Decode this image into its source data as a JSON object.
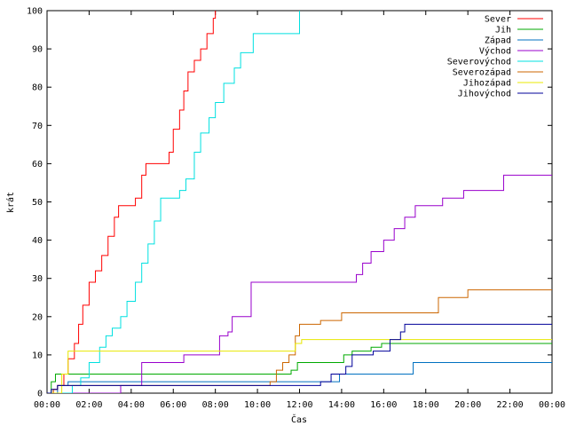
{
  "chart_data": {
    "type": "line",
    "xlabel": "Čas",
    "ylabel": "krát",
    "xlim": [
      0,
      24
    ],
    "ylim": [
      0,
      100
    ],
    "x_ticks": [
      "00:00",
      "02:00",
      "04:00",
      "06:00",
      "08:00",
      "10:00",
      "12:00",
      "14:00",
      "16:00",
      "18:00",
      "20:00",
      "22:00",
      "00:00"
    ],
    "y_ticks": [
      0,
      10,
      20,
      30,
      40,
      50,
      60,
      70,
      80,
      90,
      100
    ],
    "legend_position": "top-right",
    "grid": false,
    "step": true,
    "series": [
      {
        "name": "Sever",
        "color": "#ff0000",
        "points": [
          [
            0,
            0
          ],
          [
            0.3,
            1
          ],
          [
            0.5,
            2
          ],
          [
            0.8,
            5
          ],
          [
            1,
            9
          ],
          [
            1.3,
            13
          ],
          [
            1.5,
            18
          ],
          [
            1.7,
            23
          ],
          [
            2,
            29
          ],
          [
            2.3,
            32
          ],
          [
            2.6,
            36
          ],
          [
            2.9,
            41
          ],
          [
            3.2,
            46
          ],
          [
            3.4,
            49
          ],
          [
            4,
            49
          ],
          [
            4.2,
            51
          ],
          [
            4.5,
            57
          ],
          [
            4.7,
            60
          ],
          [
            5.5,
            60
          ],
          [
            5.8,
            63
          ],
          [
            6,
            69
          ],
          [
            6.3,
            74
          ],
          [
            6.5,
            79
          ],
          [
            6.7,
            84
          ],
          [
            7,
            87
          ],
          [
            7.3,
            90
          ],
          [
            7.6,
            94
          ],
          [
            7.9,
            98
          ],
          [
            8,
            100
          ]
        ]
      },
      {
        "name": "Jih",
        "color": "#00aa00",
        "points": [
          [
            0,
            0
          ],
          [
            0.2,
            3
          ],
          [
            0.4,
            5
          ],
          [
            11.5,
            5
          ],
          [
            11.6,
            6
          ],
          [
            11.9,
            8
          ],
          [
            13.9,
            8
          ],
          [
            14.1,
            10
          ],
          [
            14.5,
            11
          ],
          [
            15.4,
            12
          ],
          [
            15.9,
            13
          ],
          [
            24,
            13
          ]
        ]
      },
      {
        "name": "Západ",
        "color": "#0070c0",
        "points": [
          [
            0,
            0
          ],
          [
            0.5,
            2
          ],
          [
            1,
            3
          ],
          [
            13.7,
            3
          ],
          [
            13.9,
            5
          ],
          [
            17.3,
            5
          ],
          [
            17.4,
            8
          ],
          [
            24,
            8
          ]
        ]
      },
      {
        "name": "Východ",
        "color": "#9900cc",
        "points": [
          [
            0,
            0
          ],
          [
            3.5,
            2
          ],
          [
            4.5,
            8
          ],
          [
            5.5,
            8
          ],
          [
            6.5,
            10
          ],
          [
            7.9,
            10
          ],
          [
            8.2,
            15
          ],
          [
            8.6,
            16
          ],
          [
            8.8,
            20
          ],
          [
            9.5,
            20
          ],
          [
            9.7,
            29
          ],
          [
            14.5,
            29
          ],
          [
            14.7,
            31
          ],
          [
            15,
            34
          ],
          [
            15.4,
            37
          ],
          [
            16,
            40
          ],
          [
            16.5,
            43
          ],
          [
            17,
            46
          ],
          [
            17.5,
            49
          ],
          [
            18.5,
            49
          ],
          [
            18.8,
            51
          ],
          [
            19.5,
            51
          ],
          [
            19.8,
            53
          ],
          [
            21.5,
            53
          ],
          [
            21.7,
            57
          ],
          [
            24,
            57
          ]
        ]
      },
      {
        "name": "Severovýchod",
        "color": "#00e0e0",
        "points": [
          [
            0,
            0
          ],
          [
            1.2,
            2
          ],
          [
            1.6,
            4
          ],
          [
            2,
            8
          ],
          [
            2.5,
            12
          ],
          [
            2.8,
            15
          ],
          [
            3.1,
            17
          ],
          [
            3.5,
            20
          ],
          [
            3.8,
            24
          ],
          [
            4.2,
            29
          ],
          [
            4.5,
            34
          ],
          [
            4.8,
            39
          ],
          [
            5.1,
            45
          ],
          [
            5.4,
            51
          ],
          [
            6,
            51
          ],
          [
            6.3,
            53
          ],
          [
            6.6,
            56
          ],
          [
            7,
            63
          ],
          [
            7.3,
            68
          ],
          [
            7.7,
            72
          ],
          [
            8,
            76
          ],
          [
            8.4,
            81
          ],
          [
            8.9,
            85
          ],
          [
            9.2,
            89
          ],
          [
            9.8,
            94
          ],
          [
            11.8,
            94
          ],
          [
            12,
            100
          ]
        ]
      },
      {
        "name": "Severozápad",
        "color": "#cc6600",
        "points": [
          [
            0,
            0
          ],
          [
            0.3,
            1
          ],
          [
            0.5,
            2
          ],
          [
            10.2,
            2
          ],
          [
            10.6,
            3
          ],
          [
            10.9,
            6
          ],
          [
            11.2,
            8
          ],
          [
            11.5,
            10
          ],
          [
            11.8,
            15
          ],
          [
            12,
            18
          ],
          [
            12.9,
            18
          ],
          [
            13,
            19
          ],
          [
            13.9,
            19
          ],
          [
            14,
            21
          ],
          [
            18.5,
            21
          ],
          [
            18.6,
            25
          ],
          [
            19.7,
            25
          ],
          [
            20,
            27
          ],
          [
            24,
            27
          ]
        ]
      },
      {
        "name": "Jihozápad",
        "color": "#e8e800",
        "points": [
          [
            0,
            0
          ],
          [
            0.7,
            5
          ],
          [
            1,
            11
          ],
          [
            11.6,
            11
          ],
          [
            11.8,
            13
          ],
          [
            12.1,
            14
          ],
          [
            24,
            14
          ]
        ]
      },
      {
        "name": "Jihovýchod",
        "color": "#000099",
        "points": [
          [
            0,
            0
          ],
          [
            0.2,
            1
          ],
          [
            0.5,
            2
          ],
          [
            12,
            2
          ],
          [
            13,
            3
          ],
          [
            13.5,
            5
          ],
          [
            14.2,
            7
          ],
          [
            14.5,
            10
          ],
          [
            15.5,
            11
          ],
          [
            16.3,
            14
          ],
          [
            16.8,
            16
          ],
          [
            17,
            18
          ],
          [
            24,
            18
          ]
        ]
      }
    ]
  }
}
